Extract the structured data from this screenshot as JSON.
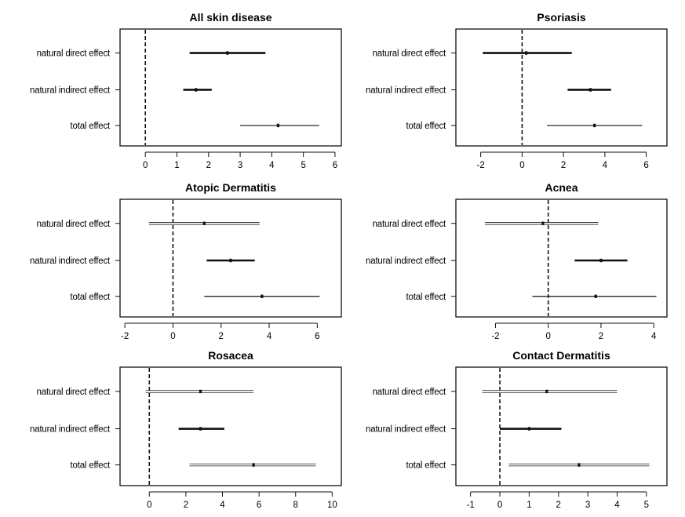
{
  "chart_data": [
    {
      "type": "forest",
      "title": "All skin disease",
      "categories": [
        "natural direct effect",
        "natural indirect effect",
        "total effect"
      ],
      "xlim": [
        -0.8,
        6.2
      ],
      "xticks": [
        0,
        1,
        2,
        3,
        4,
        5,
        6
      ],
      "reference_line": 0,
      "estimates": [
        2.6,
        1.6,
        4.2
      ],
      "lower": [
        1.4,
        1.2,
        3.0
      ],
      "upper": [
        3.8,
        2.1,
        5.5
      ],
      "line_weight": [
        "thick",
        "thick",
        "thin"
      ]
    },
    {
      "type": "forest",
      "title": "Psoriasis",
      "categories": [
        "natural direct effect",
        "natural indirect effect",
        "total effect"
      ],
      "xlim": [
        -3.2,
        7.0
      ],
      "xticks": [
        -2,
        0,
        2,
        4,
        6
      ],
      "reference_line": 0,
      "estimates": [
        0.2,
        3.3,
        3.5
      ],
      "lower": [
        -1.9,
        2.2,
        1.2
      ],
      "upper": [
        2.4,
        4.3,
        5.8
      ],
      "line_weight": [
        "thick",
        "thick",
        "thin"
      ]
    },
    {
      "type": "forest",
      "title": "Atopic Dermatitis",
      "categories": [
        "natural direct effect",
        "natural indirect effect",
        "total effect"
      ],
      "xlim": [
        -2.2,
        7.0
      ],
      "xticks": [
        -2,
        0,
        2,
        4,
        6
      ],
      "reference_line": 0,
      "estimates": [
        1.3,
        2.4,
        3.7
      ],
      "lower": [
        -1.0,
        1.4,
        1.3
      ],
      "upper": [
        3.6,
        3.4,
        6.1
      ],
      "line_weight": [
        "double",
        "thick",
        "thin"
      ]
    },
    {
      "type": "forest",
      "title": "Acnea",
      "categories": [
        "natural direct effect",
        "natural indirect effect",
        "total effect"
      ],
      "xlim": [
        -3.5,
        4.5
      ],
      "xticks": [
        -2,
        0,
        2,
        4
      ],
      "reference_line": 0,
      "estimates": [
        -0.2,
        2.0,
        1.8
      ],
      "lower": [
        -2.4,
        1.0,
        -0.6
      ],
      "upper": [
        1.9,
        3.0,
        4.1
      ],
      "line_weight": [
        "double",
        "thick",
        "thin"
      ]
    },
    {
      "type": "forest",
      "title": "Rosacea",
      "categories": [
        "natural direct effect",
        "natural indirect effect",
        "total effect"
      ],
      "xlim": [
        -1.6,
        10.5
      ],
      "xticks": [
        0,
        2,
        4,
        6,
        8,
        10
      ],
      "reference_line": 0,
      "estimates": [
        2.8,
        2.8,
        5.7
      ],
      "lower": [
        -0.2,
        1.6,
        2.2
      ],
      "upper": [
        5.7,
        4.1,
        9.1
      ],
      "line_weight": [
        "double",
        "thick",
        "double"
      ]
    },
    {
      "type": "forest",
      "title": "Contact Dermatitis",
      "categories": [
        "natural direct effect",
        "natural indirect effect",
        "total effect"
      ],
      "xlim": [
        -1.5,
        5.7
      ],
      "xticks": [
        -1,
        0,
        1,
        2,
        3,
        4,
        5
      ],
      "reference_line": 0,
      "estimates": [
        1.6,
        1.0,
        2.7
      ],
      "lower": [
        -0.6,
        0.0,
        0.3
      ],
      "upper": [
        4.0,
        2.1,
        5.1
      ],
      "line_weight": [
        "double",
        "thick",
        "double"
      ]
    }
  ]
}
